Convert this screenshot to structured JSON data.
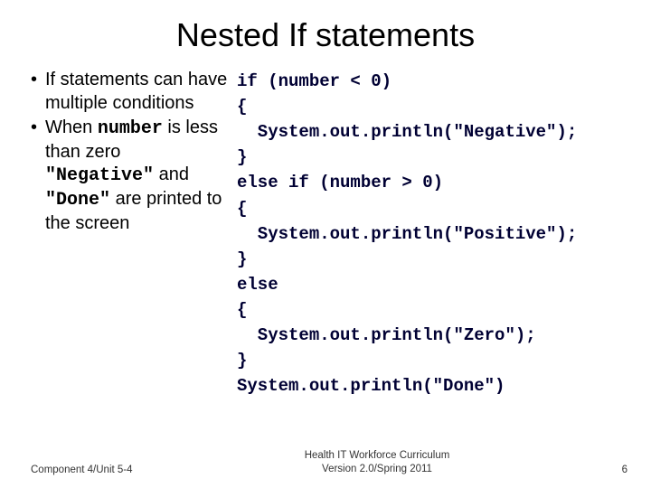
{
  "title": "Nested If statements",
  "bullets": {
    "b1_pre": "If statements can have multiple conditions",
    "b2_pre": "When ",
    "b2_code1": "number",
    "b2_mid1": " is less than zero ",
    "b2_code2": "\"Negative\"",
    "b2_mid2": " and ",
    "b2_code3": "\"Done\"",
    "b2_post": " are printed to the screen"
  },
  "code": {
    "l1": "if (number < 0)",
    "l2": "{",
    "l3": "  System.out.println(\"Negative\");",
    "l4": "}",
    "l5": "else if (number > 0)",
    "l6": "{",
    "l7": "  System.out.println(\"Positive\");",
    "l8": "}",
    "l9": "else",
    "l10": "{",
    "l11": "  System.out.println(\"Zero\");",
    "l12": "}",
    "l13": "System.out.println(\"Done\")"
  },
  "footer": {
    "left": "Component 4/Unit 5-4",
    "center_line1": "Health IT Workforce Curriculum",
    "center_line2": "Version 2.0/Spring 2011",
    "page": "6"
  }
}
